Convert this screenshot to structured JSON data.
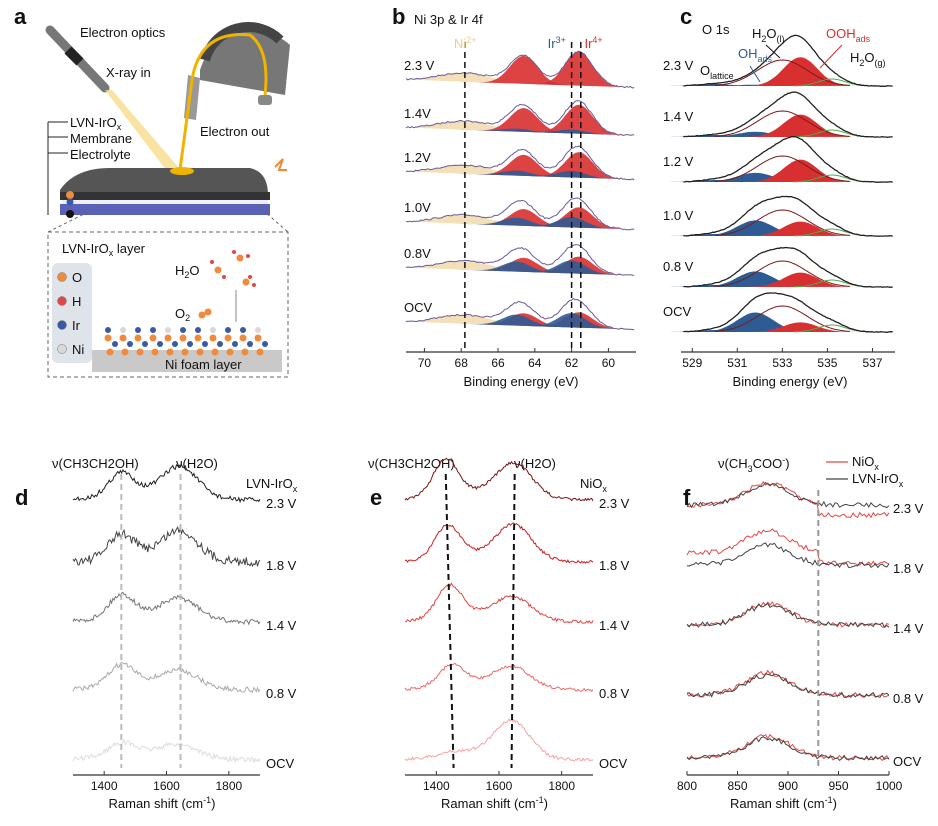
{
  "panel_a": {
    "label": "a",
    "electron_optics": "Electron optics",
    "xray_in": "X-ray in",
    "electron_out": "Electron out",
    "lvn_iro": "LVN-IrO",
    "lvn_iro_sub": "x",
    "membrane": "Membrane",
    "electrolyte": "Electrolyte",
    "layer_title": "LVN-IrO",
    "layer_title_sub": "x",
    "layer_title_suffix": " layer",
    "legend": [
      {
        "label": "O",
        "color": "#f08a3c"
      },
      {
        "label": "H",
        "color": "#e04848"
      },
      {
        "label": "Ir",
        "color": "#3a5aa8"
      },
      {
        "label": "Ni",
        "color": "#d8d8d8"
      }
    ],
    "h2o": "H",
    "h2o_sub": "2",
    "h2o_end": "O",
    "o2": "O",
    "o2_sub": "2",
    "foam": "Ni foam layer"
  },
  "chart_data": [
    {
      "panel": "b",
      "type": "line",
      "title": "Ni 3p & Ir 4f",
      "xlabel": "Binding energy (eV)",
      "xlim": [
        71,
        58.5
      ],
      "xticks": [
        70,
        68,
        66,
        64,
        62,
        60
      ],
      "reference_lines": [
        67.8,
        62.0,
        61.5
      ],
      "annotations": [
        {
          "text": "Ni",
          "sup": "2+",
          "color": "#e8d08a"
        },
        {
          "text": "Ir",
          "sup": "3+",
          "color": "#2f5b94"
        },
        {
          "text": "Ir",
          "sup": "4+",
          "color": "#d83030"
        }
      ],
      "components": {
        "Ni2+": 67.8,
        "Ir3+ 4f5/2": 65.0,
        "Ir3+ 4f7/2": 62.0,
        "Ir4+ 4f5/2": 64.6,
        "Ir4+ 4f7/2": 61.6
      },
      "series": [
        {
          "name": "2.3 V",
          "ir4_fraction": 1.0
        },
        {
          "name": "1.4V",
          "ir4_fraction": 0.85
        },
        {
          "name": "1.2V",
          "ir4_fraction": 0.75
        },
        {
          "name": "1.0V",
          "ir4_fraction": 0.6
        },
        {
          "name": "0.8V",
          "ir4_fraction": 0.5
        },
        {
          "name": "OCV",
          "ir4_fraction": 0.45
        }
      ]
    },
    {
      "panel": "c",
      "type": "line",
      "title": "O 1s",
      "xlabel": "Binding energy (eV)",
      "xlim": [
        528.5,
        538
      ],
      "xticks": [
        529,
        531,
        533,
        535,
        537
      ],
      "annotations": [
        {
          "text": "H",
          "sub1": "2",
          "text2": "O",
          "sub2": "(l)",
          "color": "#111111"
        },
        {
          "text": "OOH",
          "sub1": "ads",
          "color": "#d83030"
        },
        {
          "text": "OH",
          "sub1": "ads",
          "color": "#2f5b94"
        },
        {
          "text": "O",
          "sub1": "lattice",
          "color": "#111111"
        },
        {
          "text": "H",
          "sub1": "2",
          "text2": "O",
          "sub2": "(g)",
          "color": "#111111"
        }
      ],
      "components": {
        "O_lattice": 530.0,
        "OH_ads": 531.8,
        "H2O(l)": 533.0,
        "OOH_ads": 533.8,
        "H2O(g)": 535.2
      },
      "series": [
        {
          "name": "2.3 V",
          "oh_ads": 0.05,
          "ooh_ads": 0.9
        },
        {
          "name": "1.4 V",
          "oh_ads": 0.2,
          "ooh_ads": 0.7
        },
        {
          "name": "1.2 V",
          "oh_ads": 0.35,
          "ooh_ads": 0.7
        },
        {
          "name": "1.0 V",
          "oh_ads": 0.6,
          "ooh_ads": 0.45
        },
        {
          "name": "0.8 V",
          "oh_ads": 0.6,
          "ooh_ads": 0.45
        },
        {
          "name": "OCV",
          "oh_ads": 0.75,
          "ooh_ads": 0.3
        }
      ]
    },
    {
      "panel": "d",
      "type": "line",
      "title": "LVN-IrO",
      "title_sub": "x",
      "xlabel": "Raman shift (cm",
      "xlabel_sup": "-1",
      "xlabel_end": ")",
      "xlim": [
        1300,
        1900
      ],
      "xticks": [
        1400,
        1600,
        1800
      ],
      "peak_labels": [
        "ν(CH3CH2OH)",
        "ν(H2O)"
      ],
      "reference_lines": [
        1455,
        1645
      ],
      "series": [
        {
          "name": "2.3 V",
          "color": "#222222"
        },
        {
          "name": "1.8 V",
          "color": "#444444"
        },
        {
          "name": "1.4 V",
          "color": "#777777"
        },
        {
          "name": "0.8 V",
          "color": "#aaaaaa"
        },
        {
          "name": "OCV",
          "color": "#dddddd"
        }
      ]
    },
    {
      "panel": "e",
      "type": "line",
      "title": "NiO",
      "title_sub": "x",
      "xlabel": "Raman shift (cm",
      "xlabel_sup": "-1",
      "xlabel_end": ")",
      "xlim": [
        1300,
        1900
      ],
      "xticks": [
        1400,
        1600,
        1800
      ],
      "peak_labels": [
        "ν(CH3CH2OH)",
        "ν(H2O)"
      ],
      "reference_lines": [
        [
          1430,
          1455
        ],
        [
          1650,
          1640
        ]
      ],
      "series": [
        {
          "name": "2.3 V",
          "color": "#7a1414"
        },
        {
          "name": "1.8 V",
          "color": "#c42222"
        },
        {
          "name": "1.4 V",
          "color": "#e04444"
        },
        {
          "name": "0.8 V",
          "color": "#ee6a6a"
        },
        {
          "name": "OCV",
          "color": "#f4a4a4"
        }
      ]
    },
    {
      "panel": "f",
      "type": "line",
      "xlabel": "Raman shift (cm",
      "xlabel_sup": "-1",
      "xlabel_end": ")",
      "xlim": [
        800,
        1000
      ],
      "xticks": [
        800,
        850,
        900,
        950,
        1000
      ],
      "peak_label": "ν(CH3COO-)",
      "reference_lines": [
        930
      ],
      "legend": [
        {
          "name": "NiO",
          "sub": "x",
          "color": "#e04848"
        },
        {
          "name": "LVN-IrO",
          "sub": "x",
          "color": "#444444"
        }
      ],
      "rows": [
        "2.3 V",
        "1.8 V",
        "1.4 V",
        "0.8 V",
        "OCV"
      ]
    }
  ],
  "panel_labels": {
    "b": "b",
    "c": "c",
    "d": "d",
    "e": "e",
    "f": "f"
  },
  "peak_text": {
    "nu": "ν(CH",
    "sub3": "3",
    "ch2": "CH",
    "sub2": "2",
    "oh": "OH)",
    "h2o_a": "ν(H",
    "h2o_b": "O)",
    "acet_a": "ν(CH",
    "acet_b": "COO",
    "acet_sup": "-",
    "acet_c": ")"
  }
}
